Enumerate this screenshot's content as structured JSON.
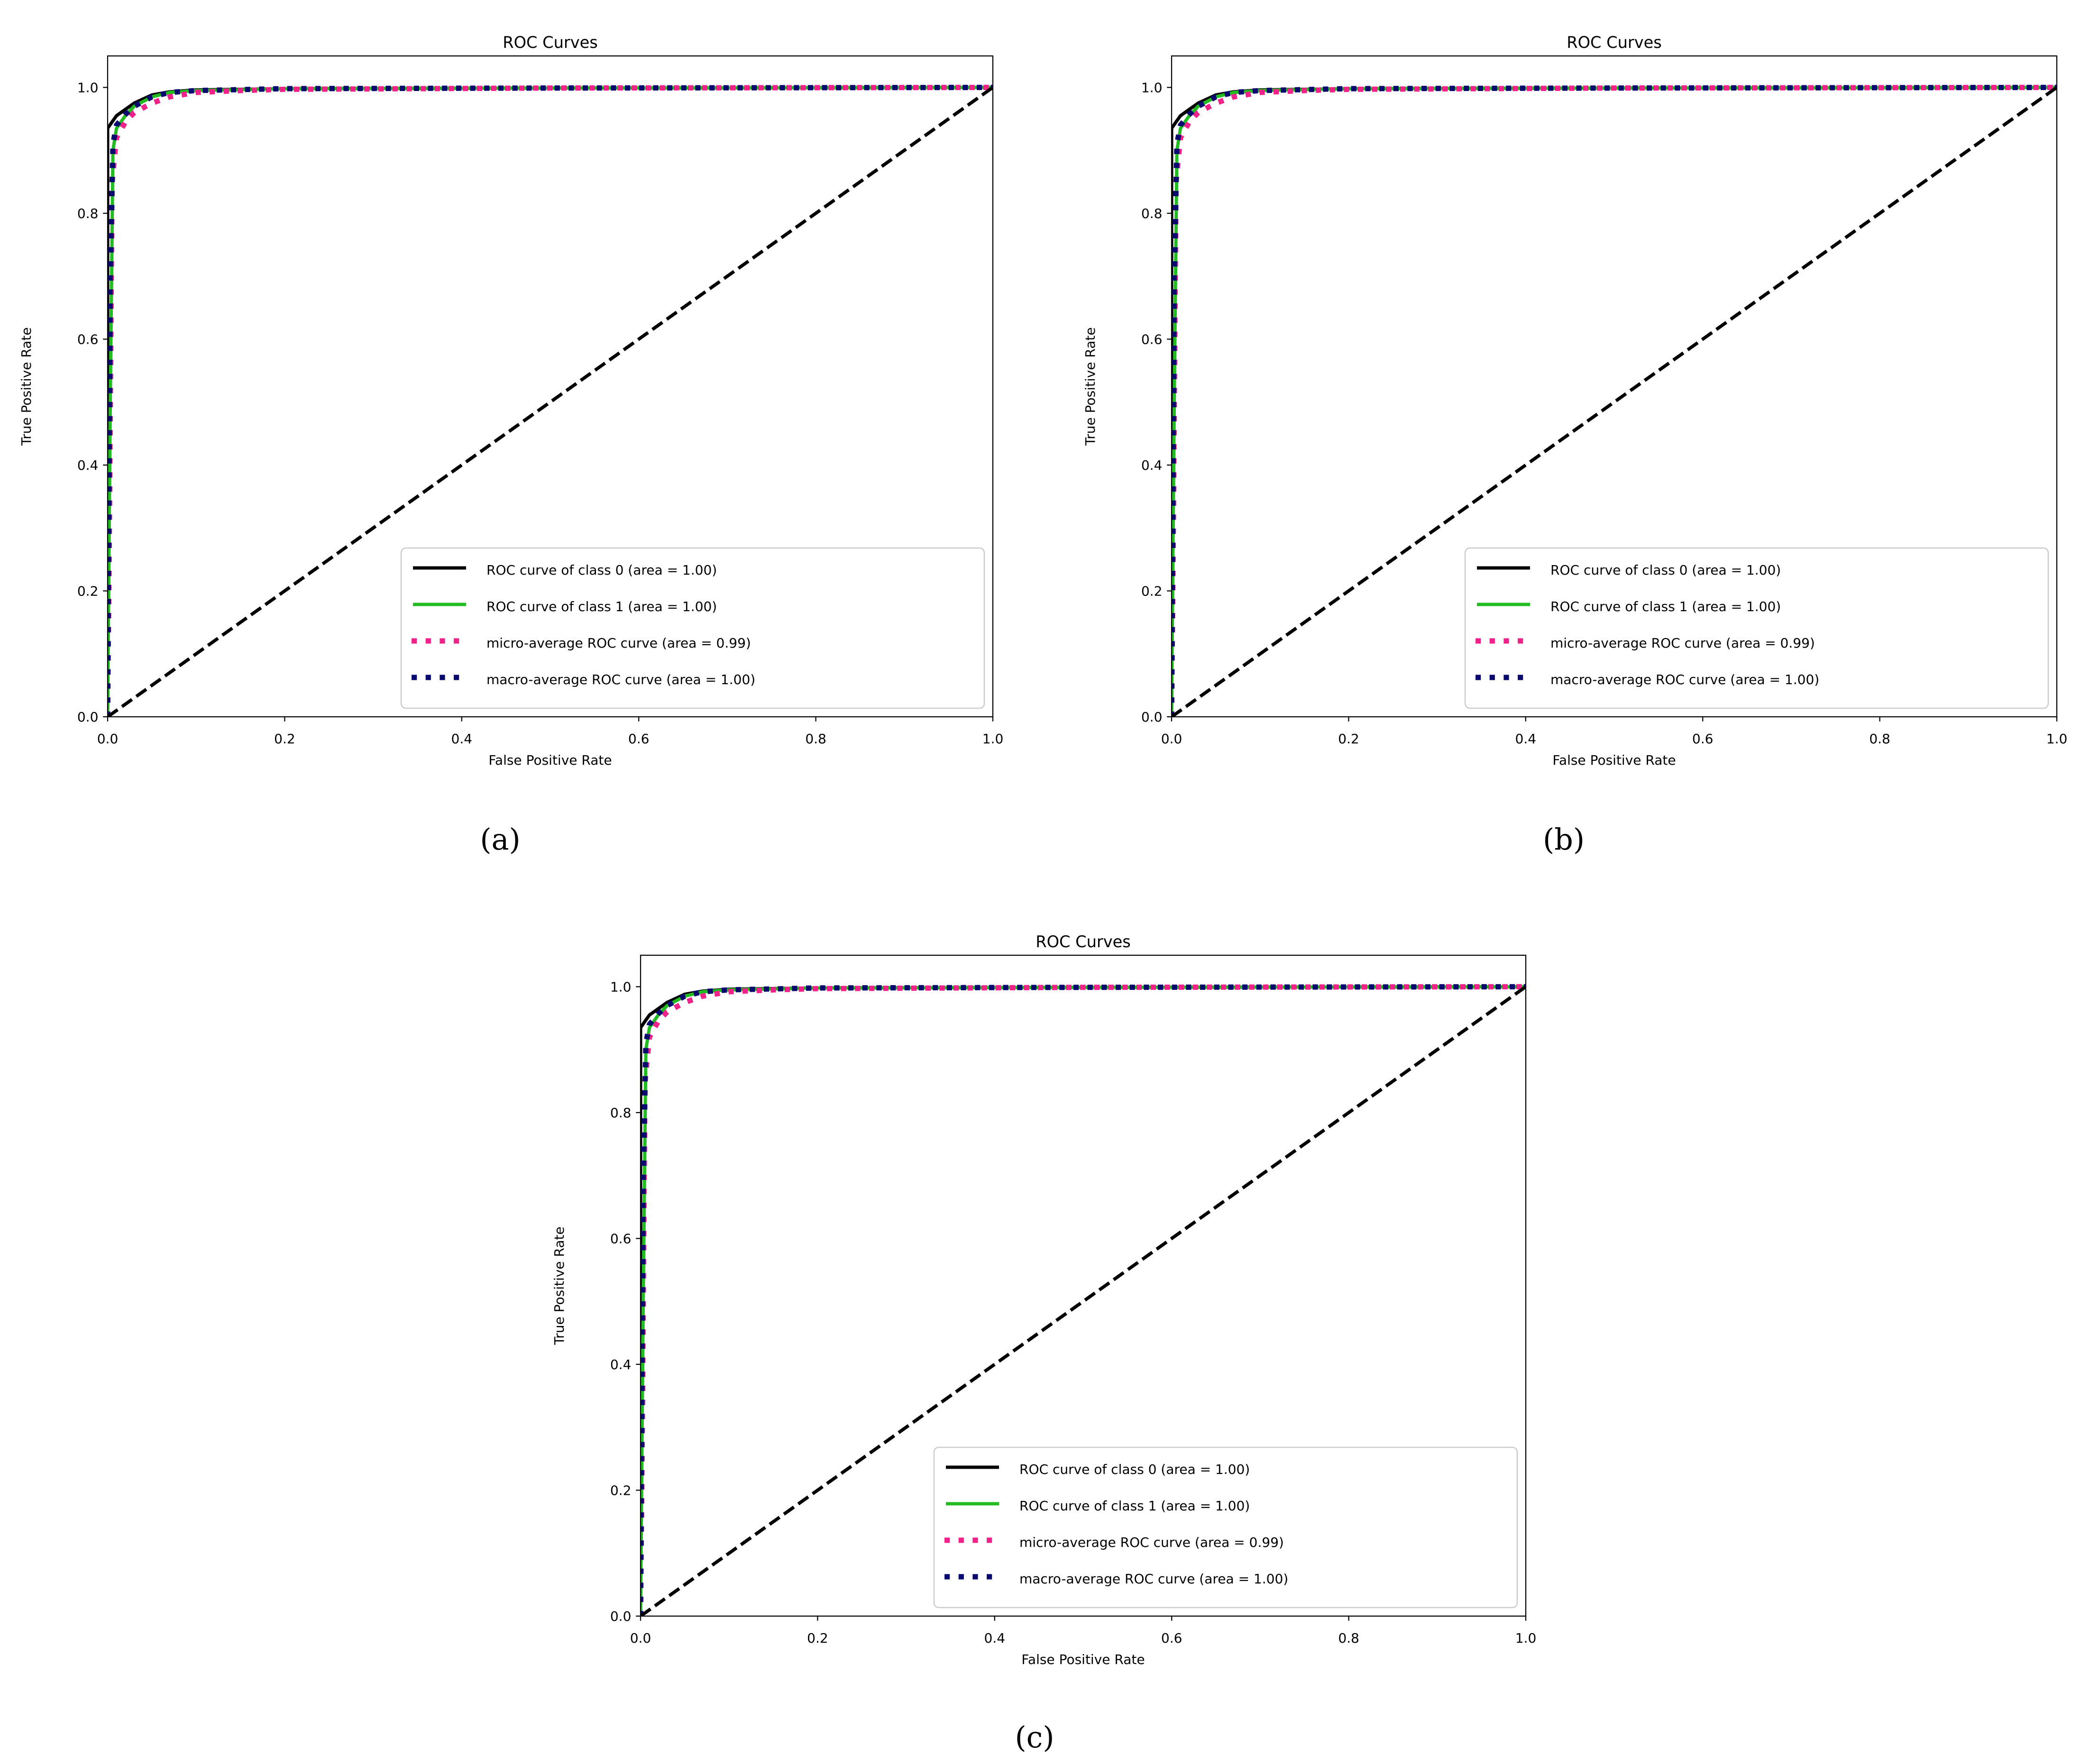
{
  "figure": {
    "panels": [
      {
        "caption_letter": "a",
        "caption": "(a)"
      },
      {
        "caption_letter": "b",
        "caption": "(b)"
      },
      {
        "caption_letter": "c",
        "caption": "(c)"
      }
    ]
  },
  "colors": {
    "class0": "#000000",
    "class1": "#22bb22",
    "micro": "#ee2288",
    "macro": "#0a0a6e",
    "chance": "#000000"
  },
  "chart_data": [
    {
      "type": "line",
      "panel": "a",
      "title": "ROC Curves",
      "xlabel": "False Positive Rate",
      "ylabel": "True Positive Rate",
      "xlim": [
        0.0,
        1.0
      ],
      "ylim": [
        0.0,
        1.05
      ],
      "xticks": [
        "0.0",
        "0.2",
        "0.4",
        "0.6",
        "0.8",
        "1.0"
      ],
      "yticks": [
        "0.0",
        "0.2",
        "0.4",
        "0.6",
        "0.8",
        "1.0"
      ],
      "grid": false,
      "legend_position": "lower-right",
      "series": [
        {
          "name": "ROC curve of class 0 (area = 1.00)",
          "style": "solid",
          "color_key": "class0",
          "x": [
            0,
            0,
            0.005,
            0.01,
            0.02,
            0.03,
            0.05,
            0.07,
            0.1,
            0.2,
            0.5,
            1.0
          ],
          "y": [
            0,
            0.935,
            0.945,
            0.955,
            0.965,
            0.975,
            0.988,
            0.993,
            0.996,
            0.998,
            0.999,
            1.0
          ]
        },
        {
          "name": "ROC curve of class 1 (area = 1.00)",
          "style": "solid",
          "color_key": "class1",
          "x": [
            0,
            0.003,
            0.006,
            0.01,
            0.02,
            0.03,
            0.05,
            0.07,
            0.1,
            0.2,
            0.5,
            1.0
          ],
          "y": [
            0,
            0.5,
            0.9,
            0.935,
            0.955,
            0.97,
            0.985,
            0.992,
            0.995,
            0.998,
            0.999,
            1.0
          ]
        },
        {
          "name": "micro-average ROC curve (area = 0.99)",
          "style": "dotted",
          "color_key": "micro",
          "x": [
            0,
            0.002,
            0.005,
            0.01,
            0.02,
            0.03,
            0.05,
            0.07,
            0.1,
            0.15,
            0.2,
            0.5,
            1.0
          ],
          "y": [
            0,
            0.3,
            0.85,
            0.92,
            0.945,
            0.96,
            0.975,
            0.985,
            0.992,
            0.995,
            0.997,
            0.999,
            1.0
          ]
        },
        {
          "name": "macro-average ROC curve (area = 1.00)",
          "style": "dotted",
          "color_key": "macro",
          "x": [
            0,
            0.003,
            0.006,
            0.01,
            0.02,
            0.03,
            0.05,
            0.07,
            0.1,
            0.2,
            0.5,
            1.0
          ],
          "y": [
            0,
            0.7,
            0.91,
            0.94,
            0.957,
            0.97,
            0.985,
            0.992,
            0.995,
            0.998,
            0.999,
            1.0
          ]
        },
        {
          "name": "chance",
          "style": "dashed",
          "color_key": "chance",
          "legend": false,
          "x": [
            0,
            1
          ],
          "y": [
            0,
            1
          ]
        }
      ]
    },
    {
      "type": "line",
      "panel": "b",
      "title": "ROC Curves",
      "xlabel": "False Positive Rate",
      "ylabel": "True Positive Rate",
      "xlim": [
        0.0,
        1.0
      ],
      "ylim": [
        0.0,
        1.05
      ],
      "xticks": [
        "0.0",
        "0.2",
        "0.4",
        "0.6",
        "0.8",
        "1.0"
      ],
      "yticks": [
        "0.0",
        "0.2",
        "0.4",
        "0.6",
        "0.8",
        "1.0"
      ],
      "grid": false,
      "legend_position": "lower-right",
      "series": [
        {
          "name": "ROC curve of class 0 (area = 1.00)",
          "style": "solid",
          "color_key": "class0",
          "x": [
            0,
            0,
            0.005,
            0.01,
            0.02,
            0.03,
            0.05,
            0.07,
            0.1,
            0.2,
            0.5,
            1.0
          ],
          "y": [
            0,
            0.935,
            0.945,
            0.955,
            0.965,
            0.975,
            0.988,
            0.993,
            0.996,
            0.998,
            0.999,
            1.0
          ]
        },
        {
          "name": "ROC curve of class 1 (area = 1.00)",
          "style": "solid",
          "color_key": "class1",
          "x": [
            0,
            0.003,
            0.006,
            0.01,
            0.02,
            0.03,
            0.05,
            0.07,
            0.1,
            0.2,
            0.5,
            1.0
          ],
          "y": [
            0,
            0.5,
            0.9,
            0.935,
            0.955,
            0.97,
            0.985,
            0.992,
            0.995,
            0.998,
            0.999,
            1.0
          ]
        },
        {
          "name": "micro-average ROC curve (area = 0.99)",
          "style": "dotted",
          "color_key": "micro",
          "x": [
            0,
            0.002,
            0.005,
            0.01,
            0.02,
            0.03,
            0.05,
            0.07,
            0.1,
            0.15,
            0.2,
            0.5,
            1.0
          ],
          "y": [
            0,
            0.3,
            0.85,
            0.92,
            0.945,
            0.96,
            0.975,
            0.985,
            0.992,
            0.995,
            0.997,
            0.999,
            1.0
          ]
        },
        {
          "name": "macro-average ROC curve (area = 1.00)",
          "style": "dotted",
          "color_key": "macro",
          "x": [
            0,
            0.003,
            0.006,
            0.01,
            0.02,
            0.03,
            0.05,
            0.07,
            0.1,
            0.2,
            0.5,
            1.0
          ],
          "y": [
            0,
            0.7,
            0.91,
            0.94,
            0.957,
            0.97,
            0.985,
            0.992,
            0.995,
            0.998,
            0.999,
            1.0
          ]
        },
        {
          "name": "chance",
          "style": "dashed",
          "color_key": "chance",
          "legend": false,
          "x": [
            0,
            1
          ],
          "y": [
            0,
            1
          ]
        }
      ]
    },
    {
      "type": "line",
      "panel": "c",
      "title": "ROC Curves",
      "xlabel": "False Positive Rate",
      "ylabel": "True Positive Rate",
      "xlim": [
        0.0,
        1.0
      ],
      "ylim": [
        0.0,
        1.05
      ],
      "xticks": [
        "0.0",
        "0.2",
        "0.4",
        "0.6",
        "0.8",
        "1.0"
      ],
      "yticks": [
        "0.0",
        "0.2",
        "0.4",
        "0.6",
        "0.8",
        "1.0"
      ],
      "grid": false,
      "legend_position": "lower-right",
      "series": [
        {
          "name": "ROC curve of class 0 (area = 1.00)",
          "style": "solid",
          "color_key": "class0",
          "x": [
            0,
            0,
            0.005,
            0.01,
            0.02,
            0.03,
            0.05,
            0.07,
            0.1,
            0.2,
            0.5,
            1.0
          ],
          "y": [
            0,
            0.935,
            0.945,
            0.955,
            0.965,
            0.975,
            0.988,
            0.993,
            0.996,
            0.998,
            0.999,
            1.0
          ]
        },
        {
          "name": "ROC curve of class 1 (area = 1.00)",
          "style": "solid",
          "color_key": "class1",
          "x": [
            0,
            0.003,
            0.006,
            0.01,
            0.02,
            0.03,
            0.05,
            0.07,
            0.1,
            0.2,
            0.5,
            1.0
          ],
          "y": [
            0,
            0.5,
            0.9,
            0.935,
            0.955,
            0.97,
            0.985,
            0.992,
            0.995,
            0.998,
            0.999,
            1.0
          ]
        },
        {
          "name": "micro-average ROC curve (area = 0.99)",
          "style": "dotted",
          "color_key": "micro",
          "x": [
            0,
            0.002,
            0.005,
            0.01,
            0.02,
            0.03,
            0.05,
            0.07,
            0.1,
            0.15,
            0.2,
            0.5,
            1.0
          ],
          "y": [
            0,
            0.3,
            0.85,
            0.92,
            0.945,
            0.96,
            0.975,
            0.985,
            0.992,
            0.995,
            0.997,
            0.999,
            1.0
          ]
        },
        {
          "name": "macro-average ROC curve (area = 1.00)",
          "style": "dotted",
          "color_key": "macro",
          "x": [
            0,
            0.003,
            0.006,
            0.01,
            0.02,
            0.03,
            0.05,
            0.07,
            0.1,
            0.2,
            0.5,
            1.0
          ],
          "y": [
            0,
            0.7,
            0.91,
            0.94,
            0.957,
            0.97,
            0.985,
            0.992,
            0.995,
            0.998,
            0.999,
            1.0
          ]
        },
        {
          "name": "chance",
          "style": "dashed",
          "color_key": "chance",
          "legend": false,
          "x": [
            0,
            1
          ],
          "y": [
            0,
            1
          ]
        }
      ]
    }
  ]
}
